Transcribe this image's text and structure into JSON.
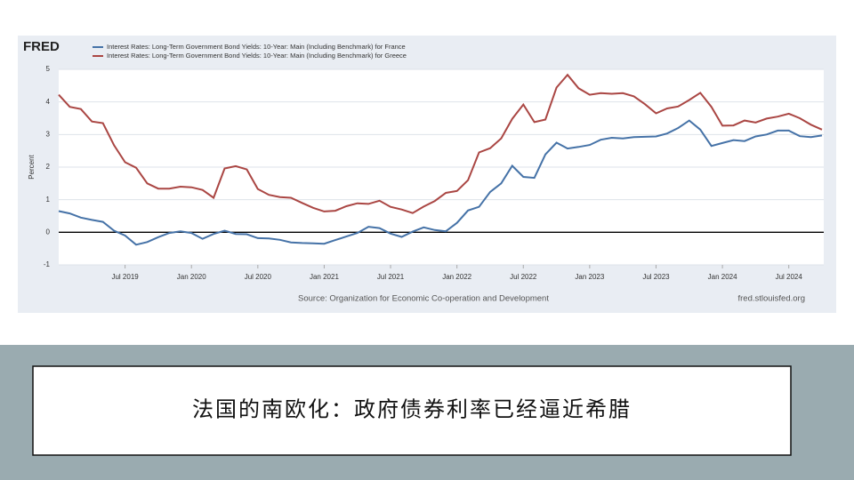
{
  "chart_data": {
    "type": "line",
    "brand": "FRED",
    "ylabel": "Percent",
    "source": "Source: Organization for Economic Co-operation and Development",
    "site": "fred.stlouisfed.org",
    "x": [
      "2019-01",
      "2019-02",
      "2019-03",
      "2019-04",
      "2019-05",
      "2019-06",
      "2019-07",
      "2019-08",
      "2019-09",
      "2019-10",
      "2019-11",
      "2019-12",
      "2020-01",
      "2020-02",
      "2020-03",
      "2020-04",
      "2020-05",
      "2020-06",
      "2020-07",
      "2020-08",
      "2020-09",
      "2020-10",
      "2020-11",
      "2020-12",
      "2021-01",
      "2021-02",
      "2021-03",
      "2021-04",
      "2021-05",
      "2021-06",
      "2021-07",
      "2021-08",
      "2021-09",
      "2021-10",
      "2021-11",
      "2021-12",
      "2022-01",
      "2022-02",
      "2022-03",
      "2022-04",
      "2022-05",
      "2022-06",
      "2022-07",
      "2022-08",
      "2022-09",
      "2022-10",
      "2022-11",
      "2022-12",
      "2023-01",
      "2023-02",
      "2023-03",
      "2023-04",
      "2023-05",
      "2023-06",
      "2023-07",
      "2023-08",
      "2023-09",
      "2023-10",
      "2023-11",
      "2023-12",
      "2024-01",
      "2024-02",
      "2024-03",
      "2024-04",
      "2024-05",
      "2024-06",
      "2024-07",
      "2024-08",
      "2024-09",
      "2024-10"
    ],
    "series": [
      {
        "name": "Interest Rates: Long-Term Government Bond Yields: 10-Year: Main (Including Benchmark) for France",
        "color": "#4572a7",
        "values": [
          0.65,
          0.58,
          0.45,
          0.38,
          0.32,
          0.05,
          -0.1,
          -0.38,
          -0.3,
          -0.15,
          -0.02,
          0.03,
          -0.02,
          -0.2,
          -0.05,
          0.05,
          -0.05,
          -0.06,
          -0.18,
          -0.19,
          -0.23,
          -0.31,
          -0.33,
          -0.34,
          -0.35,
          -0.24,
          -0.13,
          -0.02,
          0.17,
          0.13,
          -0.04,
          -0.14,
          0.02,
          0.15,
          0.07,
          0.03,
          0.29,
          0.67,
          0.78,
          1.24,
          1.5,
          2.04,
          1.7,
          1.67,
          2.39,
          2.75,
          2.57,
          2.62,
          2.68,
          2.84,
          2.9,
          2.88,
          2.92,
          2.93,
          2.94,
          3.03,
          3.2,
          3.43,
          3.15,
          2.65,
          2.74,
          2.83,
          2.8,
          2.94,
          3.0,
          3.12,
          3.12,
          2.95,
          2.92,
          2.97
        ]
      },
      {
        "name": "Interest Rates: Long-Term Government Bond Yields: 10-Year: Main (Including Benchmark) for Greece",
        "color": "#aa4643",
        "values": [
          4.22,
          3.85,
          3.78,
          3.4,
          3.35,
          2.67,
          2.15,
          1.98,
          1.5,
          1.34,
          1.34,
          1.4,
          1.38,
          1.3,
          1.06,
          1.96,
          2.03,
          1.93,
          1.33,
          1.15,
          1.08,
          1.06,
          0.9,
          0.75,
          0.64,
          0.66,
          0.8,
          0.89,
          0.87,
          0.97,
          0.78,
          0.7,
          0.59,
          0.79,
          0.96,
          1.21,
          1.27,
          1.6,
          2.45,
          2.58,
          2.88,
          3.48,
          3.92,
          3.38,
          3.46,
          4.44,
          4.83,
          4.42,
          4.22,
          4.27,
          4.25,
          4.27,
          4.17,
          3.93,
          3.65,
          3.8,
          3.86,
          4.06,
          4.28,
          3.85,
          3.27,
          3.28,
          3.43,
          3.37,
          3.49,
          3.55,
          3.64,
          3.5,
          3.3,
          3.15
        ]
      }
    ],
    "xlim": [
      "2019-01",
      "2024-10"
    ],
    "xticks": [
      {
        "value": "2019-07",
        "label": "Jul 2019"
      },
      {
        "value": "2020-01",
        "label": "Jan 2020"
      },
      {
        "value": "2020-07",
        "label": "Jul 2020"
      },
      {
        "value": "2021-01",
        "label": "Jan 2021"
      },
      {
        "value": "2021-07",
        "label": "Jul 2021"
      },
      {
        "value": "2022-01",
        "label": "Jan 2022"
      },
      {
        "value": "2022-07",
        "label": "Jul 2022"
      },
      {
        "value": "2023-01",
        "label": "Jan 2023"
      },
      {
        "value": "2023-07",
        "label": "Jul 2023"
      },
      {
        "value": "2024-01",
        "label": "Jan 2024"
      },
      {
        "value": "2024-07",
        "label": "Jul 2024"
      }
    ],
    "ylim": [
      -1,
      5
    ],
    "yticks": [
      -1,
      0,
      1,
      2,
      3,
      4,
      5
    ],
    "grid": true
  },
  "caption": "法国的南欧化：政府债券利率已经逼近希腊"
}
